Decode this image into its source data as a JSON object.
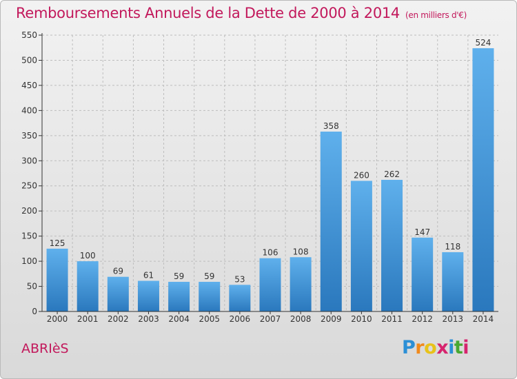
{
  "chart_data": {
    "type": "bar",
    "title": "Remboursements Annuels de la Dette de 2000 à 2014",
    "unit_note": "(en milliers d'€)",
    "categories": [
      "2000",
      "2001",
      "2002",
      "2003",
      "2004",
      "2005",
      "2006",
      "2007",
      "2008",
      "2009",
      "2010",
      "2011",
      "2012",
      "2013",
      "2014"
    ],
    "values": [
      125,
      100,
      69,
      61,
      59,
      59,
      53,
      106,
      108,
      358,
      260,
      262,
      147,
      118,
      524
    ],
    "ylim": [
      0,
      550
    ],
    "yticks": [
      0,
      50,
      100,
      150,
      200,
      250,
      300,
      350,
      400,
      450,
      500,
      550
    ],
    "grid": true,
    "bar_color": "#3d92d8",
    "bar_color_light": "#5fb0ec",
    "bar_color_dark": "#2a78bd"
  },
  "footer": {
    "town": "ABRIèS",
    "brand_letters": [
      "P",
      "r",
      "o",
      "x",
      "i",
      "t",
      "i"
    ],
    "brand_colors": [
      "#2b8fd6",
      "#f08a1c",
      "#e8c21a",
      "#d6246e",
      "#2b8fd6",
      "#48a832",
      "#d6246e"
    ]
  },
  "colors": {
    "title": "#c2185b",
    "axis": "#333333",
    "grid": "#bdbdbd"
  }
}
